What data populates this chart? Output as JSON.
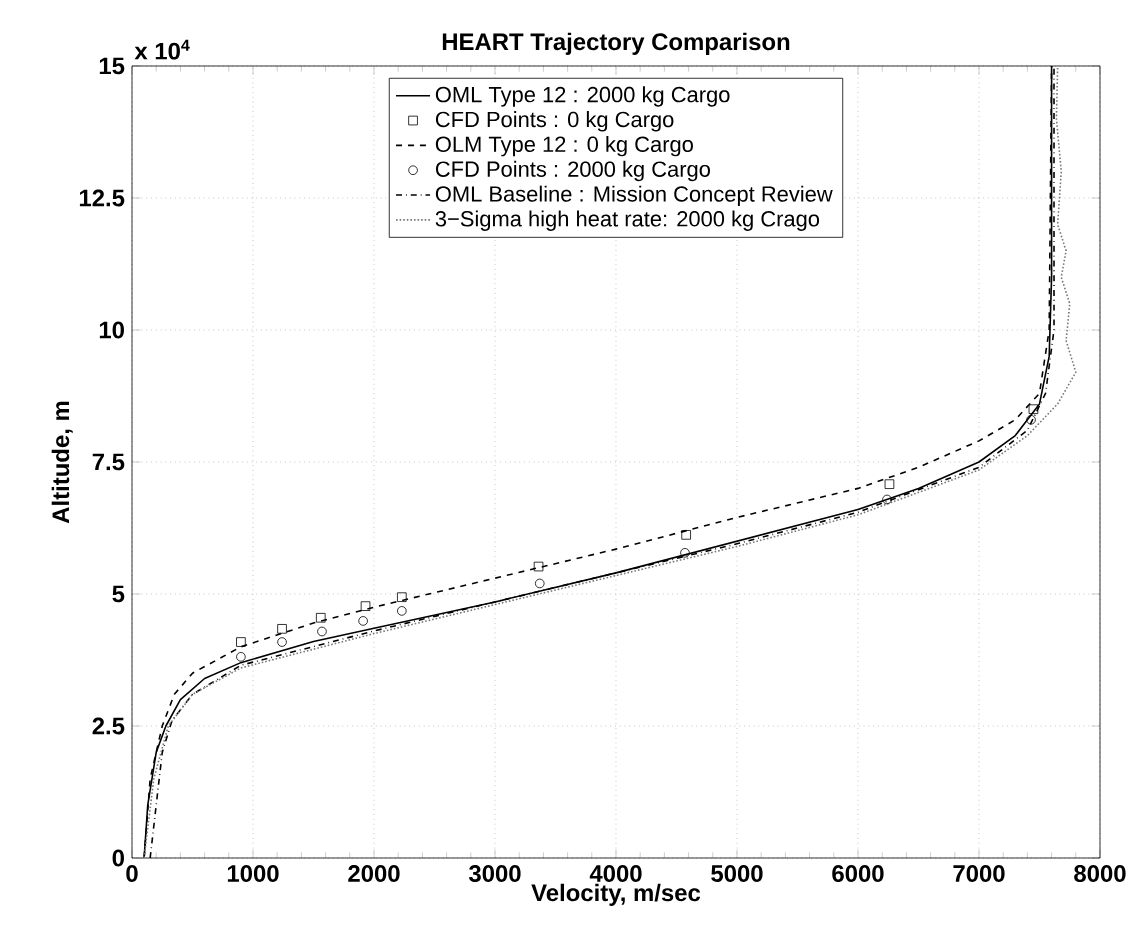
{
  "chart_data": {
    "type": "line",
    "title": "HEART Trajectory Comparison",
    "xlabel": "Velocity, m/sec",
    "ylabel": "Altitude, m",
    "annotations": [
      "x 10$^{4}$"
    ],
    "xlim": [
      0,
      8000
    ],
    "ylim": [
      0,
      15
    ],
    "xticks": [
      0,
      1000,
      2000,
      3000,
      4000,
      5000,
      6000,
      7000,
      8000
    ],
    "yticks": [
      0,
      2.5,
      5,
      7.5,
      10,
      12.5,
      15
    ],
    "grid": true,
    "legend": "top",
    "series": [
      {
        "name": "OML Type 12 : 2000 kg Cargo",
        "color": "#000000",
        "line_style": "solid",
        "x": [
          100,
          130,
          200,
          280,
          400,
          600,
          900,
          1500,
          2000,
          3000,
          4000,
          5000,
          6000,
          6500,
          7000,
          7300,
          7500,
          7580,
          7600,
          7600
        ],
        "values": [
          0,
          1.0,
          2.0,
          2.5,
          3.0,
          3.4,
          3.7,
          4.1,
          4.35,
          4.85,
          5.4,
          6.0,
          6.6,
          7.0,
          7.5,
          8.0,
          8.6,
          9.5,
          11.0,
          15.0
        ]
      },
      {
        "name": "CFD Points : 0 kg Cargo",
        "type": "scatter",
        "color": "#000000",
        "marker": "square",
        "x": [
          900,
          1240,
          1560,
          1930,
          2230,
          3360,
          4580,
          6260,
          7450
        ],
        "values": [
          4.09,
          4.34,
          4.55,
          4.77,
          4.94,
          5.52,
          6.12,
          7.08,
          8.5
        ]
      },
      {
        "name": "OLM Type 12 : 0 kg Cargo",
        "color": "#000000",
        "line_style": "dashed",
        "x": [
          100,
          150,
          250,
          350,
          500,
          900,
          1500,
          2000,
          3000,
          4000,
          5000,
          6000,
          6500,
          7000,
          7300,
          7500,
          7580,
          7600
        ],
        "values": [
          0,
          1.5,
          2.5,
          3.1,
          3.5,
          4.0,
          4.45,
          4.75,
          5.3,
          5.85,
          6.45,
          7.0,
          7.4,
          7.9,
          8.3,
          8.8,
          10.0,
          15.0
        ]
      },
      {
        "name": "CFD Points : 2000 kg Cargo",
        "type": "scatter",
        "color": "#000000",
        "marker": "circle",
        "x": [
          900,
          1240,
          1570,
          1910,
          2230,
          3370,
          4570,
          6240,
          7430
        ],
        "values": [
          3.81,
          4.09,
          4.29,
          4.49,
          4.68,
          5.2,
          5.78,
          6.79,
          8.3
        ]
      },
      {
        "name": "OML Baseline : Mission Concept Review",
        "color": "#000000",
        "line_style": "dashdot",
        "x": [
          150,
          200,
          250,
          330,
          500,
          900,
          2000,
          3000,
          4000,
          5000,
          6000,
          7000,
          7400,
          7550,
          7620,
          7620
        ],
        "values": [
          0,
          1.0,
          2.0,
          2.6,
          3.1,
          3.65,
          4.3,
          4.85,
          5.4,
          5.95,
          6.55,
          7.4,
          8.1,
          8.8,
          10.0,
          15.0
        ]
      },
      {
        "name": "3−Sigma high heat rate: 2000 kg Crago",
        "color": "#777777",
        "line_style": "dotted",
        "x": [
          100,
          180,
          300,
          500,
          900,
          2000,
          3000,
          4000,
          5000,
          6000,
          7000,
          7400,
          7650,
          7800,
          7720,
          7750,
          7680,
          7720,
          7650,
          7680,
          7640,
          7650
        ],
        "values": [
          0,
          1.5,
          2.5,
          3.1,
          3.6,
          4.25,
          4.8,
          5.35,
          5.9,
          6.5,
          7.35,
          8.0,
          8.6,
          9.2,
          9.8,
          10.5,
          11.0,
          11.5,
          12.0,
          13.0,
          14.0,
          15.0
        ]
      }
    ]
  }
}
